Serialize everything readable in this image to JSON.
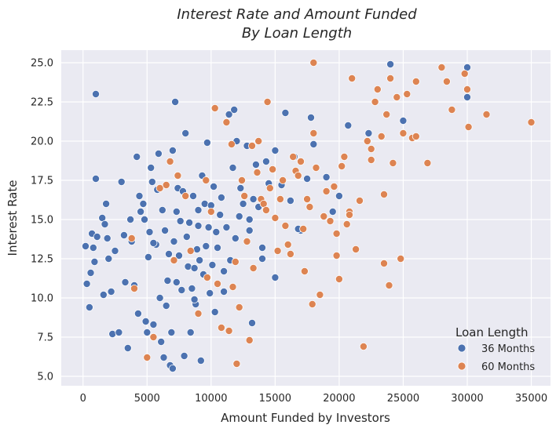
{
  "chart_data": {
    "type": "scatter",
    "title": [
      "Interest Rate and Amount Funded",
      "By Loan Length"
    ],
    "xlabel": "Amount Funded by Investors",
    "ylabel": "Interest Rate",
    "xlim": [
      -1700,
      36500
    ],
    "ylim": [
      4.4,
      25.8
    ],
    "xticks": [
      0,
      5000,
      10000,
      15000,
      20000,
      25000,
      30000,
      35000
    ],
    "yticks": [
      5.0,
      7.5,
      10.0,
      12.5,
      15.0,
      17.5,
      20.0,
      22.5,
      25.0
    ],
    "grid": true,
    "legend": {
      "title": "Loan Length",
      "placement": "lower-right"
    },
    "series": [
      {
        "name": "36 Months",
        "color": "#4c72b0",
        "points": [
          [
            1000,
            23.0
          ],
          [
            200,
            13.3
          ],
          [
            300,
            10.9
          ],
          [
            500,
            9.4
          ],
          [
            600,
            11.6
          ],
          [
            700,
            14.1
          ],
          [
            800,
            13.2
          ],
          [
            900,
            12.3
          ],
          [
            1000,
            17.6
          ],
          [
            1100,
            13.9
          ],
          [
            1500,
            15.1
          ],
          [
            1600,
            10.2
          ],
          [
            1700,
            14.7
          ],
          [
            1800,
            16.0
          ],
          [
            1900,
            13.8
          ],
          [
            2000,
            12.5
          ],
          [
            2200,
            10.4
          ],
          [
            2300,
            7.7
          ],
          [
            2500,
            13.0
          ],
          [
            2800,
            7.8
          ],
          [
            3000,
            17.4
          ],
          [
            3200,
            14.0
          ],
          [
            3300,
            11.0
          ],
          [
            3500,
            6.8
          ],
          [
            3700,
            15.0
          ],
          [
            3800,
            13.6
          ],
          [
            4000,
            10.8
          ],
          [
            4200,
            19.0
          ],
          [
            4300,
            9.0
          ],
          [
            4400,
            16.5
          ],
          [
            4500,
            15.5
          ],
          [
            4700,
            16.0
          ],
          [
            4800,
            15.0
          ],
          [
            4900,
            8.5
          ],
          [
            5000,
            7.8
          ],
          [
            5100,
            12.6
          ],
          [
            5200,
            14.2
          ],
          [
            5300,
            18.3
          ],
          [
            5400,
            17.4
          ],
          [
            5500,
            8.3
          ],
          [
            5700,
            13.4
          ],
          [
            5800,
            16.9
          ],
          [
            5900,
            19.2
          ],
          [
            6000,
            10.0
          ],
          [
            6100,
            7.2
          ],
          [
            6200,
            15.6
          ],
          [
            6300,
            6.2
          ],
          [
            6400,
            14.3
          ],
          [
            6500,
            9.5
          ],
          [
            6600,
            11.1
          ],
          [
            6700,
            12.8
          ],
          [
            6800,
            5.7
          ],
          [
            6900,
            7.8
          ],
          [
            7000,
            19.4
          ],
          [
            7100,
            13.6
          ],
          [
            7200,
            22.5
          ],
          [
            7300,
            15.5
          ],
          [
            7400,
            17.0
          ],
          [
            7500,
            12.7
          ],
          [
            7600,
            14.9
          ],
          [
            7700,
            10.5
          ],
          [
            7800,
            16.8
          ],
          [
            7900,
            6.3
          ],
          [
            8000,
            20.5
          ],
          [
            8100,
            13.9
          ],
          [
            8200,
            12.0
          ],
          [
            8300,
            14.8
          ],
          [
            8400,
            7.8
          ],
          [
            8500,
            10.6
          ],
          [
            8600,
            16.5
          ],
          [
            8700,
            11.9
          ],
          [
            8800,
            9.6
          ],
          [
            8900,
            13.1
          ],
          [
            9000,
            15.6
          ],
          [
            9100,
            12.4
          ],
          [
            9200,
            6.0
          ],
          [
            9300,
            17.8
          ],
          [
            9400,
            11.5
          ],
          [
            9500,
            16.0
          ],
          [
            9600,
            13.3
          ],
          [
            9700,
            19.9
          ],
          [
            9800,
            14.5
          ],
          [
            9900,
            10.3
          ],
          [
            10000,
            15.9
          ],
          [
            10100,
            12.1
          ],
          [
            10200,
            17.1
          ],
          [
            10300,
            9.1
          ],
          [
            10400,
            14.2
          ],
          [
            10500,
            13.2
          ],
          [
            10700,
            15.3
          ],
          [
            10800,
            16.4
          ],
          [
            11000,
            11.7
          ],
          [
            11200,
            14.5
          ],
          [
            11400,
            21.7
          ],
          [
            11500,
            12.4
          ],
          [
            11700,
            18.3
          ],
          [
            11800,
            22.0
          ],
          [
            11900,
            13.8
          ],
          [
            12000,
            20.0
          ],
          [
            12200,
            15.2
          ],
          [
            12300,
            17.0
          ],
          [
            12500,
            16.0
          ],
          [
            12800,
            19.7
          ],
          [
            13000,
            14.3
          ],
          [
            13200,
            8.4
          ],
          [
            13300,
            16.3
          ],
          [
            13500,
            18.5
          ],
          [
            13700,
            15.8
          ],
          [
            14000,
            12.5
          ],
          [
            14300,
            18.7
          ],
          [
            14500,
            17.3
          ],
          [
            15000,
            19.4
          ],
          [
            15500,
            17.2
          ],
          [
            15800,
            21.8
          ],
          [
            16200,
            16.2
          ],
          [
            16500,
            19.0
          ],
          [
            17000,
            14.3
          ],
          [
            17500,
            17.6
          ],
          [
            17800,
            21.5
          ],
          [
            18000,
            19.8
          ],
          [
            19000,
            17.7
          ],
          [
            19500,
            15.5
          ],
          [
            20000,
            16.5
          ],
          [
            20700,
            21.0
          ],
          [
            22300,
            20.5
          ],
          [
            24000,
            24.9
          ],
          [
            25000,
            21.3
          ],
          [
            30000,
            22.8
          ],
          [
            30000,
            24.7
          ],
          [
            15000,
            11.3
          ],
          [
            12000,
            5.8
          ],
          [
            7000,
            5.5
          ],
          [
            9000,
            14.6
          ],
          [
            11000,
            10.4
          ],
          [
            13000,
            15.0
          ],
          [
            14000,
            13.2
          ],
          [
            16800,
            14.4
          ],
          [
            7300,
            11.0
          ],
          [
            5500,
            13.5
          ],
          [
            8700,
            9.9
          ]
        ]
      },
      {
        "name": "60 Months",
        "color": "#dd8452",
        "points": [
          [
            3800,
            13.8
          ],
          [
            4000,
            10.6
          ],
          [
            5000,
            6.2
          ],
          [
            5500,
            7.5
          ],
          [
            6000,
            17.0
          ],
          [
            6500,
            17.2
          ],
          [
            6800,
            18.7
          ],
          [
            7100,
            12.4
          ],
          [
            7400,
            17.8
          ],
          [
            8000,
            16.5
          ],
          [
            8400,
            13.0
          ],
          [
            9000,
            9.0
          ],
          [
            9600,
            17.5
          ],
          [
            9700,
            11.3
          ],
          [
            10000,
            15.5
          ],
          [
            10300,
            22.1
          ],
          [
            10500,
            10.9
          ],
          [
            10800,
            8.1
          ],
          [
            11200,
            21.2
          ],
          [
            11400,
            7.9
          ],
          [
            11600,
            19.8
          ],
          [
            11700,
            10.7
          ],
          [
            11900,
            12.3
          ],
          [
            12000,
            5.8
          ],
          [
            12200,
            9.4
          ],
          [
            12400,
            17.5
          ],
          [
            12600,
            16.5
          ],
          [
            12800,
            13.6
          ],
          [
            13000,
            7.3
          ],
          [
            13200,
            19.7
          ],
          [
            13300,
            11.9
          ],
          [
            13600,
            18.0
          ],
          [
            13700,
            20.0
          ],
          [
            13900,
            16.3
          ],
          [
            14100,
            16.0
          ],
          [
            14300,
            15.6
          ],
          [
            14400,
            22.5
          ],
          [
            14600,
            17.0
          ],
          [
            14800,
            18.2
          ],
          [
            15000,
            15.1
          ],
          [
            15200,
            13.0
          ],
          [
            15400,
            16.3
          ],
          [
            15600,
            17.5
          ],
          [
            15800,
            14.6
          ],
          [
            16000,
            13.4
          ],
          [
            16200,
            12.8
          ],
          [
            16400,
            19.0
          ],
          [
            16600,
            18.1
          ],
          [
            16800,
            17.8
          ],
          [
            17000,
            18.7
          ],
          [
            17300,
            11.7
          ],
          [
            17500,
            16.3
          ],
          [
            17700,
            15.8
          ],
          [
            17900,
            9.6
          ],
          [
            18000,
            20.5
          ],
          [
            18200,
            18.3
          ],
          [
            18500,
            10.2
          ],
          [
            18800,
            15.2
          ],
          [
            19000,
            16.8
          ],
          [
            19300,
            14.9
          ],
          [
            19600,
            17.1
          ],
          [
            19800,
            12.7
          ],
          [
            20000,
            11.2
          ],
          [
            20200,
            18.4
          ],
          [
            20400,
            19.0
          ],
          [
            20600,
            14.7
          ],
          [
            20800,
            15.5
          ],
          [
            21000,
            24.0
          ],
          [
            21300,
            13.1
          ],
          [
            21600,
            16.2
          ],
          [
            21900,
            6.9
          ],
          [
            22200,
            20.0
          ],
          [
            22500,
            18.8
          ],
          [
            22800,
            22.5
          ],
          [
            23000,
            23.3
          ],
          [
            23300,
            20.3
          ],
          [
            23500,
            16.6
          ],
          [
            23700,
            21.7
          ],
          [
            23900,
            10.8
          ],
          [
            24000,
            24.0
          ],
          [
            24200,
            18.6
          ],
          [
            24500,
            22.8
          ],
          [
            24800,
            12.5
          ],
          [
            25000,
            20.5
          ],
          [
            25300,
            23.0
          ],
          [
            25700,
            20.2
          ],
          [
            26000,
            23.8
          ],
          [
            26900,
            18.6
          ],
          [
            28000,
            24.7
          ],
          [
            28400,
            23.8
          ],
          [
            28800,
            22.0
          ],
          [
            29800,
            24.3
          ],
          [
            30000,
            23.3
          ],
          [
            30100,
            20.9
          ],
          [
            31500,
            21.7
          ],
          [
            35000,
            21.2
          ],
          [
            18000,
            25.0
          ],
          [
            19800,
            14.1
          ],
          [
            17200,
            14.4
          ],
          [
            23500,
            12.2
          ],
          [
            22500,
            19.5
          ],
          [
            20800,
            15.3
          ],
          [
            26000,
            20.3
          ]
        ]
      }
    ]
  }
}
